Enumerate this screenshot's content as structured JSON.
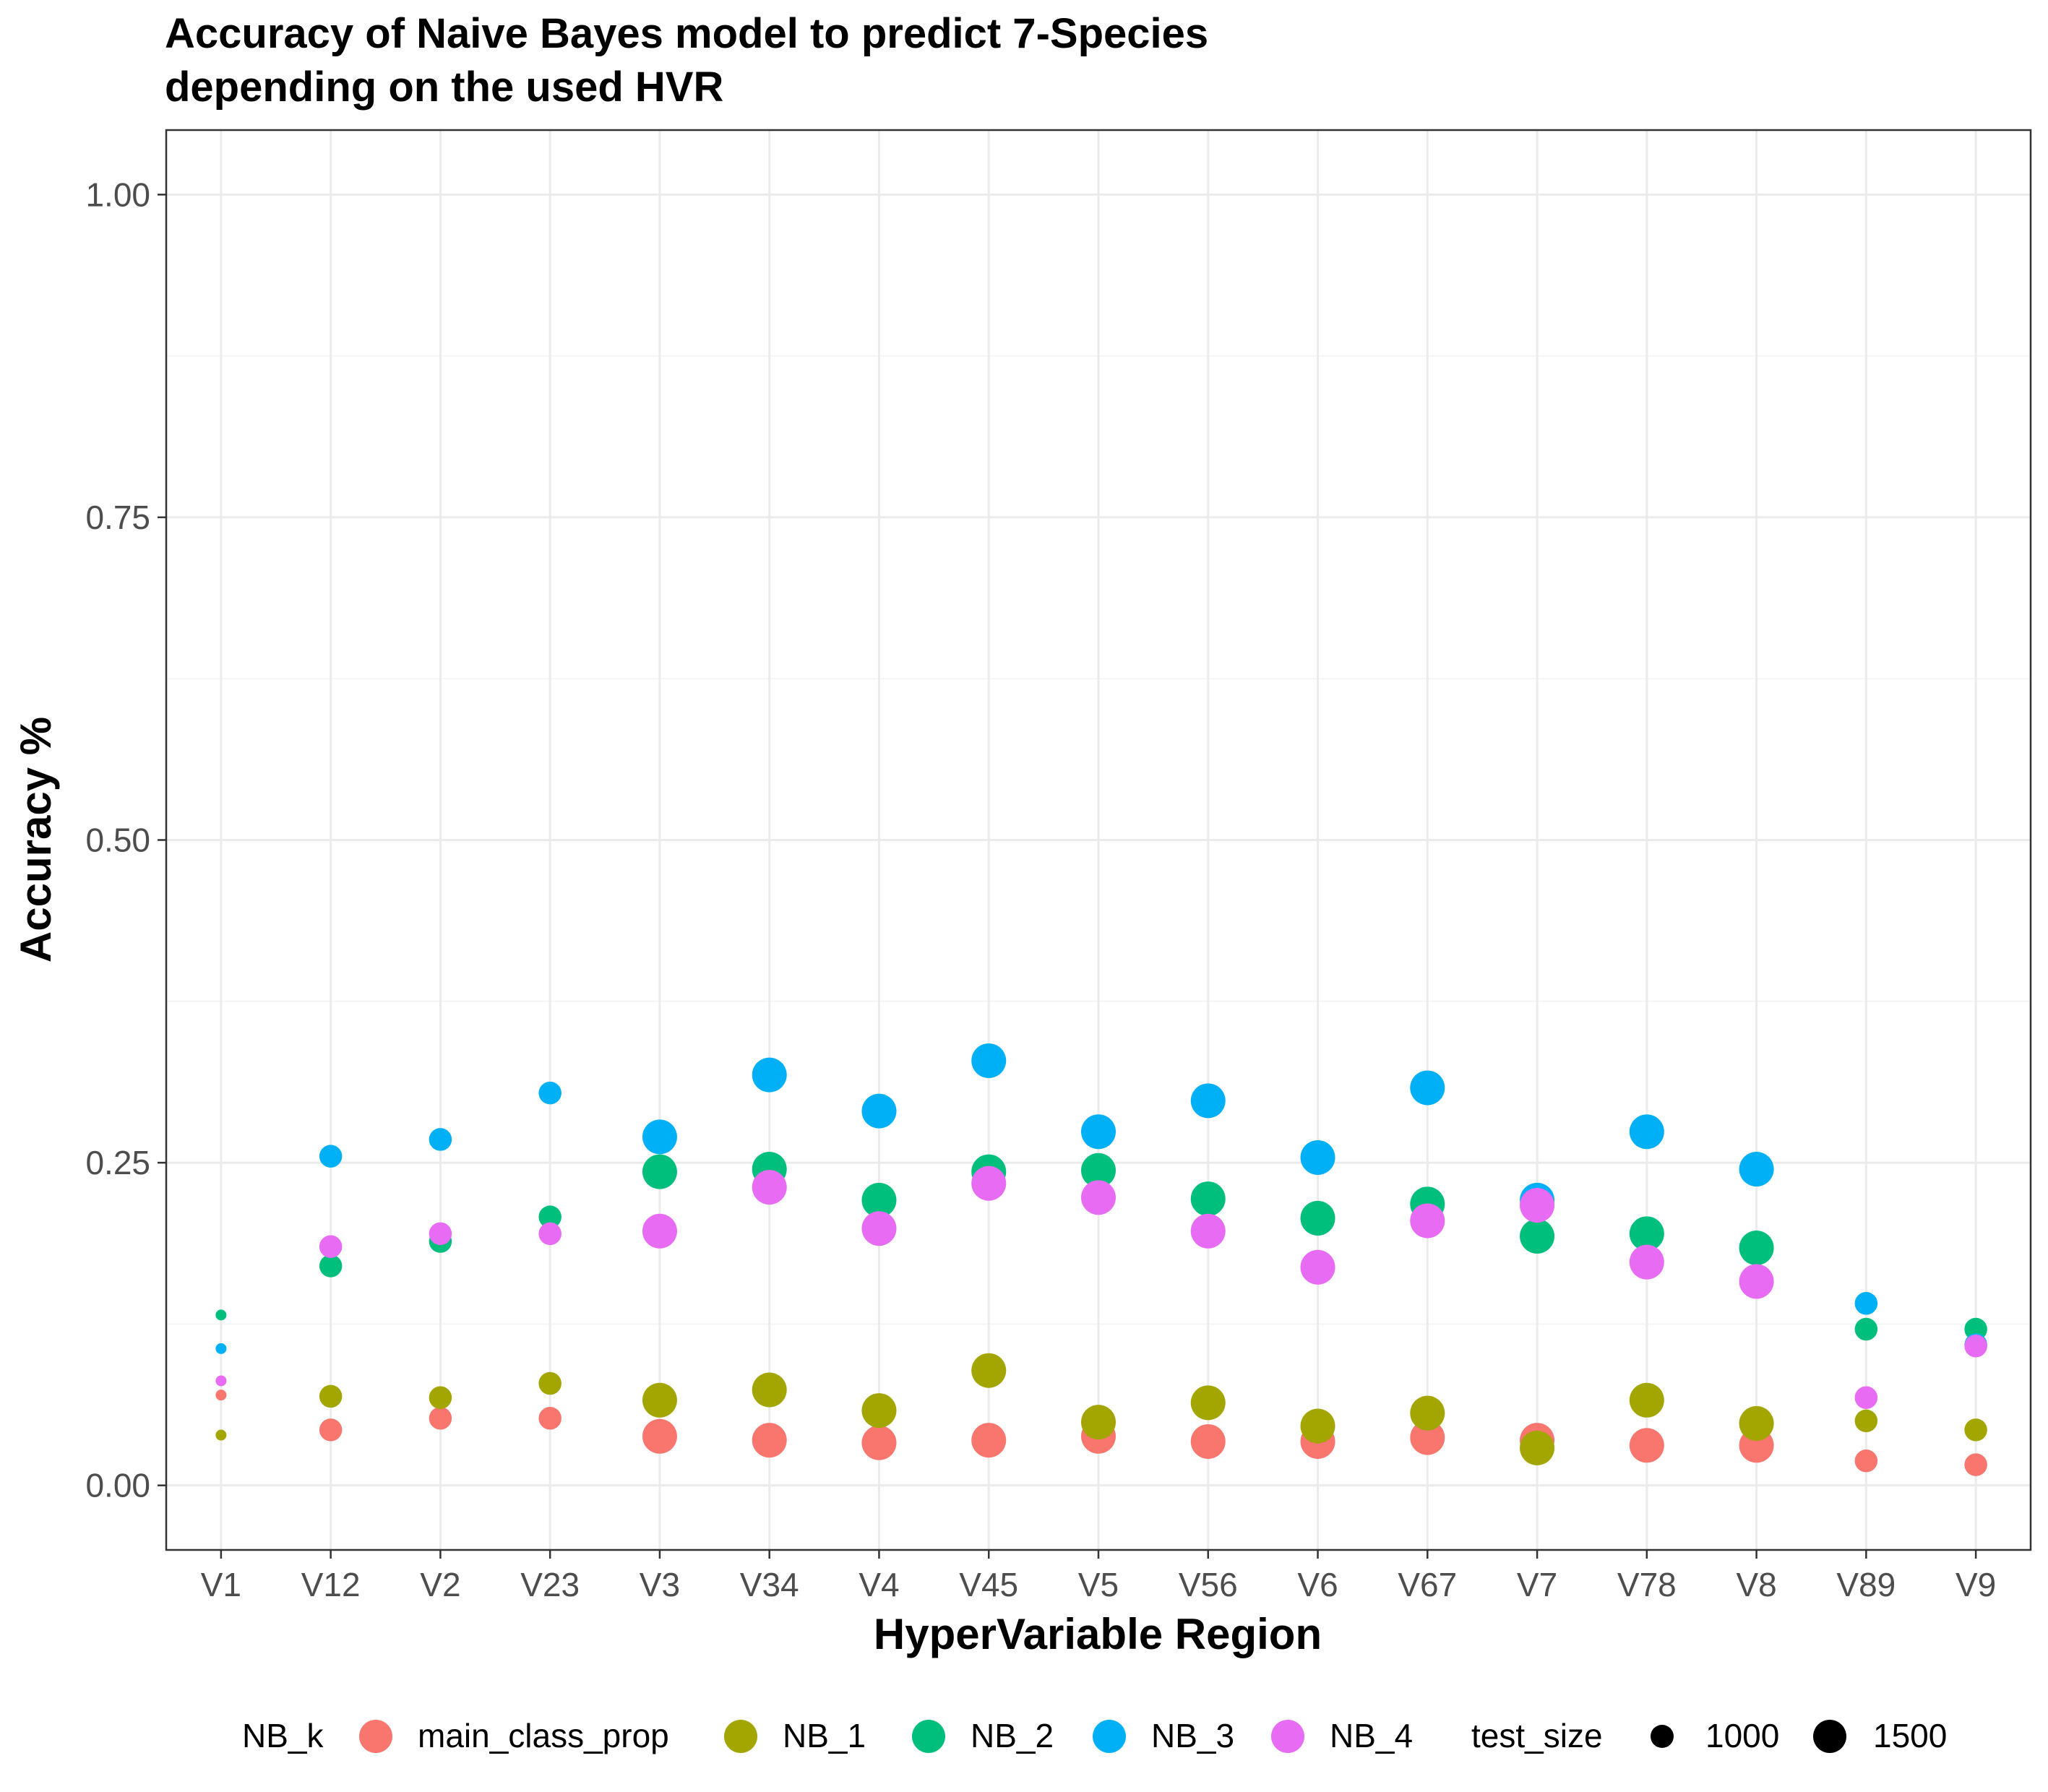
{
  "chart_data": {
    "type": "scatter",
    "title": [
      "Accuracy of Naive Bayes model to predict 7-Species",
      "depending on the used HVR"
    ],
    "xlabel": "HyperVariable Region",
    "ylabel": "Accuracy %",
    "ylim": [
      -0.05,
      1.05
    ],
    "yticks": [
      0.0,
      0.25,
      0.5,
      0.75,
      1.0
    ],
    "ytick_labels": [
      "0.00",
      "0.25",
      "0.50",
      "0.75",
      "1.00"
    ],
    "grid": true,
    "legend_position": "bottom",
    "categories": [
      "V1",
      "V12",
      "V2",
      "V23",
      "V3",
      "V34",
      "V4",
      "V45",
      "V5",
      "V56",
      "V6",
      "V67",
      "V7",
      "V78",
      "V8",
      "V89",
      "V9"
    ],
    "test_size": [
      500,
      1000,
      1000,
      1000,
      1500,
      1500,
      1500,
      1500,
      1500,
      1500,
      1500,
      1500,
      1500,
      1500,
      1500,
      1000,
      1000
    ],
    "series": [
      {
        "name": "main_class_prop",
        "color": "#F8766D",
        "values": [
          0.07,
          0.043,
          0.052,
          0.052,
          0.038,
          0.035,
          0.033,
          0.035,
          0.038,
          0.034,
          0.034,
          0.037,
          0.035,
          0.031,
          0.031,
          0.019,
          0.016
        ]
      },
      {
        "name": "NB_1",
        "color": "#A3A500",
        "values": [
          0.039,
          0.069,
          0.068,
          0.079,
          0.066,
          0.074,
          0.058,
          0.089,
          0.049,
          0.064,
          0.046,
          0.056,
          0.029,
          0.066,
          0.048,
          0.05,
          0.043
        ]
      },
      {
        "name": "NB_2",
        "color": "#00BF7D",
        "values": [
          0.132,
          0.17,
          0.189,
          0.208,
          0.243,
          0.245,
          0.221,
          0.243,
          0.244,
          0.222,
          0.207,
          0.218,
          0.193,
          0.195,
          0.184,
          0.121,
          0.121
        ]
      },
      {
        "name": "NB_3",
        "color": "#00B0F6",
        "values": [
          0.106,
          0.255,
          0.268,
          0.304,
          0.27,
          0.318,
          0.29,
          0.329,
          0.274,
          0.298,
          0.254,
          0.308,
          0.221,
          0.274,
          0.245,
          0.141,
          0.109
        ]
      },
      {
        "name": "NB_4",
        "color": "#E76BF3",
        "values": [
          0.081,
          0.185,
          0.195,
          0.195,
          0.197,
          0.231,
          0.199,
          0.234,
          0.223,
          0.197,
          0.169,
          0.205,
          0.217,
          0.173,
          0.158,
          0.068,
          0.108
        ]
      }
    ]
  },
  "legend": {
    "color_title": "NB_k",
    "size_title": "test_size",
    "size_labels": [
      "1000",
      "1500"
    ],
    "size_values": [
      1000,
      1500
    ],
    "point_color": "#000000"
  },
  "colors": {
    "panel_border": "#333333",
    "grid_major": "#EBEBEB",
    "grid_minor": "#F5F5F5",
    "tick_text": "#4D4D4D"
  }
}
